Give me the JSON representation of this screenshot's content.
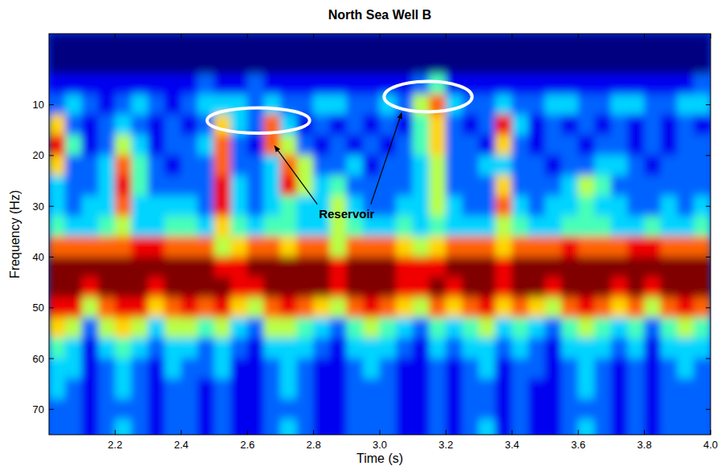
{
  "chart_data": {
    "type": "heatmap",
    "title": "North Sea Well B",
    "x_label": "Time (s)",
    "y_label": "Frequency (Hz)",
    "annotations": [
      {
        "text": "Reservoir"
      }
    ],
    "xlim": [
      2.0,
      4.0
    ],
    "ylim": [
      75,
      -4
    ],
    "xticks": [
      2.2,
      2.4,
      2.6,
      2.8,
      {
        "value": 3,
        "label": "3.0"
      },
      3.2,
      3.4,
      3.6,
      3.8,
      {
        "value": 4,
        "label": "4.0"
      }
    ],
    "yticks": [
      10,
      20,
      30,
      40,
      50,
      60,
      70
    ],
    "grid": false,
    "tick_labels": true,
    "x": [
      2.025,
      2.075,
      2.125,
      2.175,
      2.225,
      2.275,
      2.325,
      2.375,
      2.425,
      2.475,
      2.525,
      2.575,
      2.625,
      2.675,
      2.725,
      2.775,
      2.825,
      2.875,
      2.925,
      2.975,
      3.025,
      3.075,
      3.125,
      3.175,
      3.225,
      3.275,
      3.325,
      3.375,
      3.425,
      3.475,
      3.525,
      3.575,
      3.625,
      3.675,
      3.725,
      3.775,
      3.825,
      3.875,
      3.925,
      3.975
    ],
    "y": [
      -2,
      2,
      6,
      10,
      14,
      18,
      22,
      26,
      30,
      34,
      38,
      42,
      46,
      50,
      54,
      58,
      62,
      66,
      70,
      74
    ],
    "cells": [
      [
        0,
        0,
        0,
        0,
        0,
        0,
        0,
        0,
        0,
        0,
        0,
        0,
        0,
        0,
        0,
        0,
        0,
        0,
        0,
        0,
        0,
        0,
        0,
        0,
        0,
        0,
        0,
        0,
        0,
        0,
        0,
        0,
        0,
        0,
        0,
        0,
        0,
        0,
        0,
        0
      ],
      [
        0,
        0,
        0,
        0,
        0,
        0,
        0,
        0,
        0,
        0,
        0,
        0,
        0,
        0,
        0,
        0,
        0,
        0,
        0,
        0,
        0,
        0,
        0,
        0,
        0,
        0,
        0,
        0,
        0,
        0,
        0,
        0,
        0,
        0,
        0,
        0,
        0,
        0,
        0,
        0
      ],
      [
        1,
        1,
        1,
        1,
        1,
        1,
        1,
        1,
        1,
        2,
        1,
        1,
        2,
        1,
        1,
        1,
        1,
        1,
        1,
        1,
        1,
        1,
        2,
        4,
        1,
        1,
        1,
        1,
        1,
        1,
        1,
        1,
        1,
        1,
        1,
        1,
        1,
        1,
        1,
        2
      ],
      [
        2,
        3,
        2,
        1,
        2,
        3,
        2,
        1,
        2,
        3,
        3,
        3,
        2,
        3,
        2,
        2,
        3,
        3,
        2,
        2,
        3,
        2,
        5,
        7,
        3,
        2,
        2,
        3,
        2,
        2,
        3,
        3,
        2,
        2,
        3,
        3,
        2,
        2,
        3,
        3
      ],
      [
        6,
        2,
        1,
        2,
        3,
        2,
        1,
        2,
        1,
        2,
        6,
        3,
        2,
        7,
        3,
        1,
        2,
        1,
        2,
        1,
        2,
        1,
        4,
        6,
        2,
        1,
        2,
        8,
        3,
        1,
        2,
        1,
        2,
        1,
        2,
        1,
        2,
        1,
        2,
        1
      ],
      [
        8,
        4,
        1,
        2,
        5,
        3,
        1,
        2,
        2,
        3,
        7,
        2,
        1,
        7,
        5,
        2,
        1,
        2,
        1,
        2,
        1,
        2,
        4,
        6,
        2,
        2,
        1,
        6,
        2,
        1,
        2,
        2,
        1,
        2,
        2,
        1,
        2,
        1,
        2,
        2
      ],
      [
        6,
        2,
        2,
        3,
        7,
        4,
        2,
        1,
        2,
        2,
        7,
        2,
        2,
        3,
        7,
        5,
        2,
        2,
        3,
        1,
        2,
        2,
        3,
        5,
        2,
        2,
        3,
        3,
        2,
        2,
        1,
        2,
        2,
        3,
        3,
        2,
        1,
        2,
        2,
        2
      ],
      [
        3,
        2,
        2,
        3,
        8,
        4,
        2,
        2,
        2,
        2,
        8,
        3,
        2,
        3,
        8,
        5,
        3,
        4,
        2,
        2,
        2,
        2,
        3,
        5,
        2,
        2,
        2,
        6,
        2,
        2,
        2,
        3,
        5,
        4,
        2,
        2,
        2,
        2,
        2,
        2
      ],
      [
        3,
        2,
        3,
        3,
        7,
        3,
        3,
        3,
        3,
        2,
        8,
        3,
        2,
        3,
        4,
        3,
        3,
        5,
        3,
        2,
        2,
        3,
        3,
        5,
        3,
        2,
        2,
        7,
        3,
        2,
        3,
        3,
        4,
        3,
        3,
        2,
        2,
        3,
        2,
        3
      ],
      [
        4,
        3,
        3,
        4,
        5,
        3,
        3,
        4,
        4,
        3,
        6,
        4,
        3,
        4,
        4,
        3,
        3,
        5,
        4,
        3,
        3,
        4,
        3,
        4,
        3,
        3,
        3,
        5,
        4,
        3,
        3,
        4,
        4,
        4,
        3,
        3,
        4,
        3,
        3,
        4
      ],
      [
        7,
        7,
        7,
        7,
        7,
        8,
        8,
        7,
        7,
        7,
        5,
        6,
        7,
        7,
        6,
        7,
        7,
        5,
        7,
        7,
        7,
        6,
        5,
        6,
        7,
        7,
        7,
        6,
        7,
        7,
        7,
        8,
        7,
        7,
        7,
        8,
        8,
        7,
        7,
        7
      ],
      [
        9,
        9,
        9,
        9,
        9,
        9,
        9,
        9,
        9,
        9,
        8,
        8,
        9,
        9,
        9,
        9,
        9,
        8,
        9,
        9,
        9,
        8,
        8,
        8,
        9,
        9,
        9,
        8,
        9,
        9,
        9,
        9,
        9,
        9,
        9,
        9,
        9,
        9,
        9,
        9
      ],
      [
        9,
        9,
        8,
        9,
        9,
        9,
        8,
        9,
        9,
        9,
        9,
        8,
        8,
        9,
        9,
        9,
        9,
        8,
        9,
        9,
        9,
        8,
        8,
        9,
        8,
        9,
        9,
        8,
        9,
        9,
        8,
        9,
        9,
        9,
        8,
        9,
        8,
        9,
        9,
        9
      ],
      [
        8,
        8,
        5,
        7,
        8,
        8,
        6,
        7,
        8,
        7,
        8,
        6,
        5,
        7,
        8,
        7,
        6,
        5,
        7,
        8,
        7,
        6,
        5,
        7,
        6,
        7,
        8,
        6,
        7,
        6,
        5,
        7,
        8,
        7,
        6,
        7,
        5,
        7,
        8,
        7
      ],
      [
        6,
        5,
        2,
        5,
        6,
        5,
        3,
        5,
        5,
        4,
        5,
        3,
        2,
        5,
        5,
        4,
        3,
        2,
        4,
        5,
        4,
        3,
        2,
        4,
        3,
        4,
        5,
        3,
        4,
        3,
        2,
        4,
        5,
        4,
        3,
        4,
        2,
        4,
        5,
        4
      ],
      [
        4,
        3,
        1,
        3,
        4,
        3,
        2,
        3,
        3,
        2,
        3,
        2,
        1,
        3,
        3,
        3,
        2,
        1,
        3,
        3,
        3,
        2,
        1,
        3,
        2,
        3,
        3,
        2,
        3,
        2,
        1,
        3,
        3,
        3,
        2,
        3,
        1,
        3,
        3,
        3
      ],
      [
        3,
        3,
        1,
        2,
        3,
        2,
        1,
        3,
        2,
        2,
        3,
        1,
        1,
        2,
        3,
        2,
        1,
        1,
        2,
        3,
        2,
        1,
        1,
        2,
        1,
        2,
        3,
        1,
        2,
        2,
        1,
        2,
        3,
        2,
        1,
        2,
        1,
        2,
        3,
        2
      ],
      [
        3,
        2,
        1,
        2,
        3,
        2,
        1,
        2,
        2,
        1,
        2,
        1,
        1,
        2,
        3,
        2,
        1,
        1,
        2,
        2,
        2,
        1,
        1,
        2,
        1,
        2,
        2,
        1,
        2,
        1,
        1,
        2,
        3,
        2,
        1,
        2,
        1,
        2,
        2,
        2
      ],
      [
        2,
        2,
        1,
        2,
        2,
        2,
        1,
        2,
        2,
        1,
        2,
        1,
        1,
        2,
        2,
        2,
        1,
        1,
        2,
        2,
        2,
        1,
        1,
        2,
        1,
        2,
        2,
        1,
        2,
        1,
        1,
        2,
        2,
        2,
        1,
        2,
        1,
        2,
        2,
        2
      ],
      [
        2,
        2,
        1,
        2,
        3,
        2,
        1,
        2,
        2,
        1,
        2,
        1,
        1,
        2,
        3,
        2,
        1,
        1,
        2,
        2,
        2,
        1,
        1,
        2,
        1,
        2,
        3,
        1,
        2,
        1,
        1,
        2,
        3,
        2,
        1,
        2,
        1,
        2,
        2,
        2
      ]
    ]
  }
}
